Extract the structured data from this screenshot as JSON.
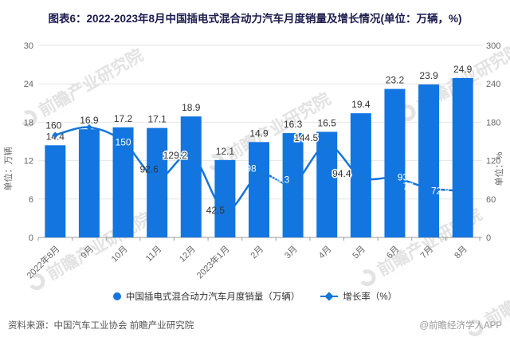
{
  "title": "图表6：2022-2023年8月中国插电式混合动力汽车月度销量及增长情况(单位：万辆，%)",
  "watermark": {
    "text": "前瞻产业研究院"
  },
  "chart_data": {
    "type": "bar",
    "categories": [
      "2022年8月",
      "9月",
      "10月",
      "11月",
      "12月",
      "2023年1月",
      "2月",
      "3月",
      "4月",
      "5月",
      "6月",
      "7月",
      "8月"
    ],
    "series": [
      {
        "name": "中国插电式混合动力汽车月度销量（万辆）",
        "type": "bar",
        "axis": "left",
        "values": [
          14.4,
          16.9,
          17.2,
          17.1,
          18.9,
          12.1,
          14.9,
          16.3,
          16.5,
          19.4,
          23.2,
          23.9,
          24.9
        ]
      },
      {
        "name": "增长率（%）",
        "type": "line",
        "axis": "right",
        "values": [
          160,
          172,
          150,
          92.6,
          129.2,
          42.5,
          98,
          84.3,
          144.5,
          94.4,
          93,
          77,
          72.8
        ],
        "labels": [
          "160",
          "",
          "150",
          "92.6",
          "129.2",
          "42.5",
          "98",
          "84.3",
          "144.5",
          "94.4",
          "93",
          "77",
          "72.8"
        ]
      }
    ],
    "left_axis": {
      "unit_label": "单位：万辆",
      "ticks": [
        0,
        6,
        12,
        18,
        24,
        30
      ],
      "max": 30
    },
    "right_axis": {
      "unit_label": "单位：%",
      "ticks": [
        0,
        60,
        120,
        180,
        240,
        300
      ],
      "max": 300
    },
    "legend": [
      "中国插电式混合动力汽车月度销量（万辆）",
      "增长率（%）"
    ],
    "legend_position": "bottom",
    "grid": true,
    "colors": {
      "bar": "#1375e0",
      "line": "#1576d8",
      "grid_line": "#e6e6e6",
      "axis_line": "#999999",
      "tick_text": "#666666",
      "label_dark": "#333333",
      "label_light": "#ffffff"
    }
  },
  "footer": {
    "source": "资料来源：中国汽车工业协会 前瞻产业研究院",
    "credit": "@前瞻经济学人APP"
  }
}
